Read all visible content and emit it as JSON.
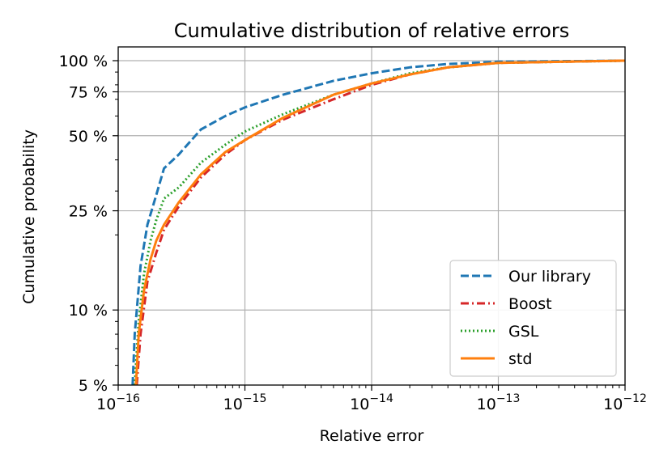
{
  "chart_data": {
    "type": "line",
    "title": "Cumulative distribution of relative errors",
    "xlabel": "Relative error",
    "ylabel": "Cumulative probability",
    "xscale": "log",
    "yscale": "log",
    "xlim": [
      1e-16,
      1e-12
    ],
    "ylim": [
      0.05,
      1.0
    ],
    "grid": true,
    "legend_position": "lower-right",
    "x_ticks": [
      {
        "value": 1e-16,
        "base": "10",
        "exp": "−16"
      },
      {
        "value": 1e-15,
        "base": "10",
        "exp": "−15"
      },
      {
        "value": 1e-14,
        "base": "10",
        "exp": "−14"
      },
      {
        "value": 1e-13,
        "base": "10",
        "exp": "−13"
      },
      {
        "value": 1e-12,
        "base": "10",
        "exp": "−12"
      }
    ],
    "y_ticks": [
      {
        "value": 0.05,
        "label": "5 %"
      },
      {
        "value": 0.1,
        "label": "10 %"
      },
      {
        "value": 0.25,
        "label": "25 %"
      },
      {
        "value": 0.5,
        "label": "50 %"
      },
      {
        "value": 0.75,
        "label": "75 %"
      },
      {
        "value": 1.0,
        "label": "100 %"
      }
    ],
    "series": [
      {
        "name": "Our library",
        "color": "#1f77b4",
        "style": "dashed",
        "x": [
          1.3e-16,
          1.35e-16,
          1.5e-16,
          1.7e-16,
          2e-16,
          2.3e-16,
          3e-16,
          4.5e-16,
          7e-16,
          1e-15,
          2e-15,
          5e-15,
          1e-14,
          2e-14,
          4e-14,
          1e-13,
          1e-12
        ],
        "y": [
          0.05,
          0.08,
          0.15,
          0.22,
          0.29,
          0.37,
          0.42,
          0.53,
          0.6,
          0.65,
          0.73,
          0.83,
          0.89,
          0.94,
          0.97,
          0.99,
          1.0
        ]
      },
      {
        "name": "Boost",
        "color": "#d62728",
        "style": "dashdot",
        "x": [
          1.4e-16,
          1.5e-16,
          1.7e-16,
          2e-16,
          2.3e-16,
          3e-16,
          4.5e-16,
          7e-16,
          1e-15,
          2e-15,
          5e-15,
          1e-14,
          2e-14,
          4e-14,
          1e-13,
          1e-12
        ],
        "y": [
          0.05,
          0.08,
          0.13,
          0.17,
          0.21,
          0.26,
          0.34,
          0.42,
          0.48,
          0.58,
          0.7,
          0.8,
          0.88,
          0.94,
          0.98,
          1.0
        ]
      },
      {
        "name": "GSL",
        "color": "#2ca02c",
        "style": "dotted",
        "x": [
          1.35e-16,
          1.45e-16,
          1.6e-16,
          1.8e-16,
          2e-16,
          2.3e-16,
          3e-16,
          4.5e-16,
          7e-16,
          1e-15,
          2e-15,
          5e-15,
          1e-14,
          2e-14,
          4e-14,
          1e-13,
          1e-12
        ],
        "y": [
          0.05,
          0.09,
          0.14,
          0.19,
          0.23,
          0.28,
          0.31,
          0.39,
          0.46,
          0.52,
          0.61,
          0.73,
          0.81,
          0.89,
          0.94,
          0.98,
          1.0
        ]
      },
      {
        "name": "std",
        "color": "#ff7f0e",
        "style": "solid",
        "x": [
          1.38e-16,
          1.45e-16,
          1.6e-16,
          1.8e-16,
          2e-16,
          2.3e-16,
          3e-16,
          4.5e-16,
          7e-16,
          1e-15,
          2e-15,
          5e-15,
          1e-14,
          2e-14,
          4e-14,
          1e-13,
          1e-12
        ],
        "y": [
          0.05,
          0.08,
          0.12,
          0.16,
          0.19,
          0.22,
          0.27,
          0.35,
          0.43,
          0.48,
          0.59,
          0.73,
          0.81,
          0.88,
          0.94,
          0.98,
          1.0
        ]
      }
    ]
  }
}
